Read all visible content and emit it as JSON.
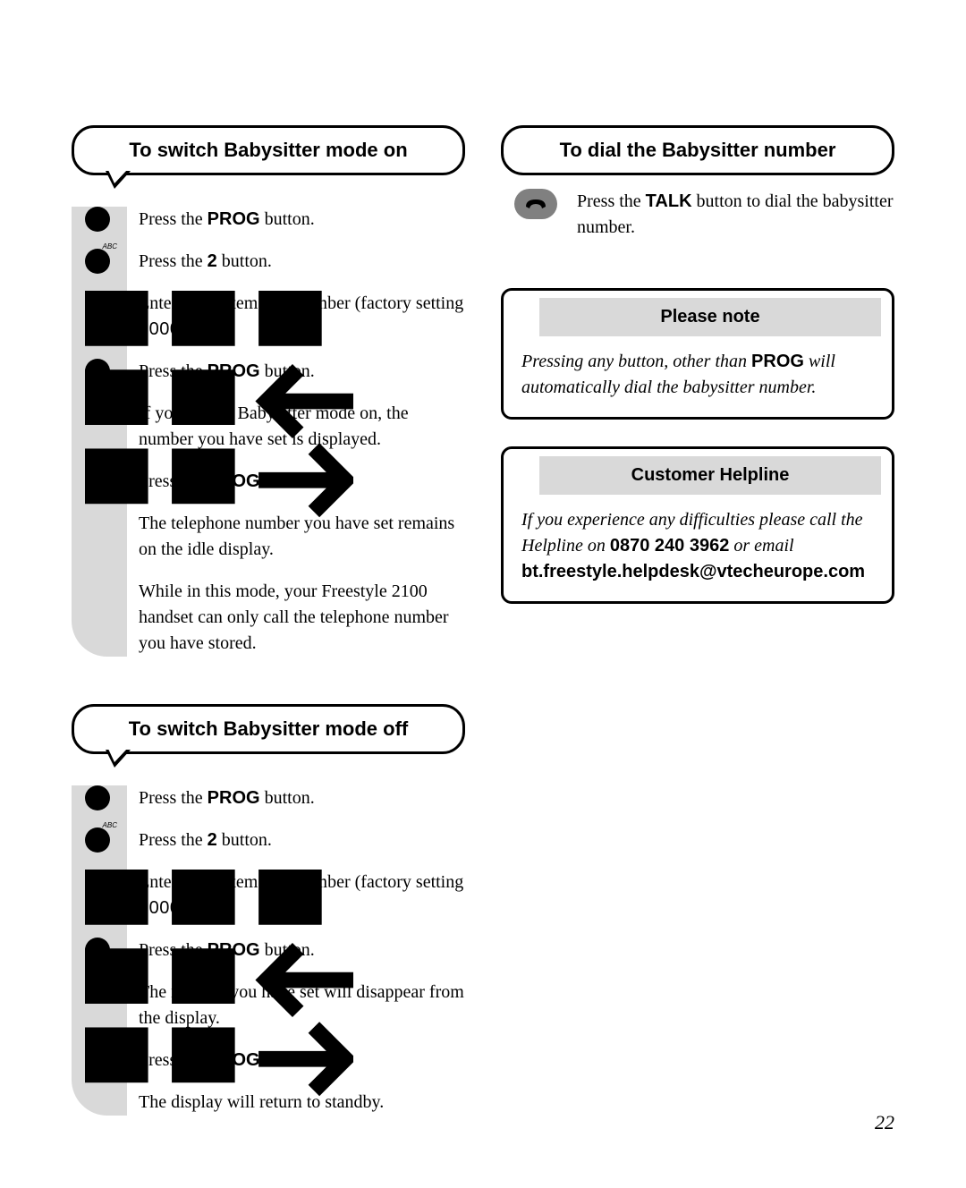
{
  "page_number": "22",
  "colors": {
    "background": "#ffffff",
    "text": "#000000",
    "band": "#d9d9d9",
    "note_header_bg": "#d9d9d9",
    "talk_button_bg": "#808080"
  },
  "section_on": {
    "title": "To switch Babysitter mode on",
    "steps": [
      {
        "icon": "dot",
        "html": "Press the <b>PROG</b> button."
      },
      {
        "icon": "dot-abc",
        "html": "Press the <b>2</b> button."
      },
      {
        "icon": "keypad",
        "html": "Enter the system PIN number (factory setting <span class='mono'>0000</span>)."
      },
      {
        "icon": "dot",
        "html": "Press the <b>PROG</b> button."
      },
      {
        "icon": "",
        "html": "If you switch Babysitter mode on, the number you have set is displayed."
      },
      {
        "icon": "dot",
        "html": "Press the <b>PROG</b> button."
      },
      {
        "icon": "",
        "html": "The telephone number you have set remains on the idle display."
      },
      {
        "icon": "",
        "html": "While in this mode, your Freestyle 2100 handset can only call the telephone number you have stored."
      }
    ]
  },
  "section_off": {
    "title": "To switch Babysitter mode off",
    "steps": [
      {
        "icon": "dot",
        "html": "Press the <b>PROG</b> button."
      },
      {
        "icon": "dot-abc",
        "html": "Press the <b>2</b> button."
      },
      {
        "icon": "keypad",
        "html": "Enter the system PIN number (factory setting <span class='mono'>0000</span>)."
      },
      {
        "icon": "dot",
        "html": "Press the <b>PROG</b> button."
      },
      {
        "icon": "",
        "html": "The number you have set will disappear from the display."
      },
      {
        "icon": "dot",
        "html": "Press the <b>PROG</b> button."
      },
      {
        "icon": "",
        "html": "The display will return to standby."
      }
    ]
  },
  "section_dial": {
    "title": "To dial the Babysitter number",
    "steps": [
      {
        "icon": "talk",
        "html": "Press the <b>TALK</b> button to dial the babysitter number."
      }
    ]
  },
  "note": {
    "title": "Please note",
    "body_pre": "Pressing any button, other than ",
    "body_bold": "PROG",
    "body_post": " will automatically dial the babysitter number."
  },
  "helpline": {
    "title": "Customer Helpline",
    "body_pre": "If you experience any difficulties please call the Helpline on ",
    "phone": "0870 240 3962",
    "body_mid": " or email ",
    "email": "bt.freestyle.helpdesk@vtecheurope.com"
  }
}
